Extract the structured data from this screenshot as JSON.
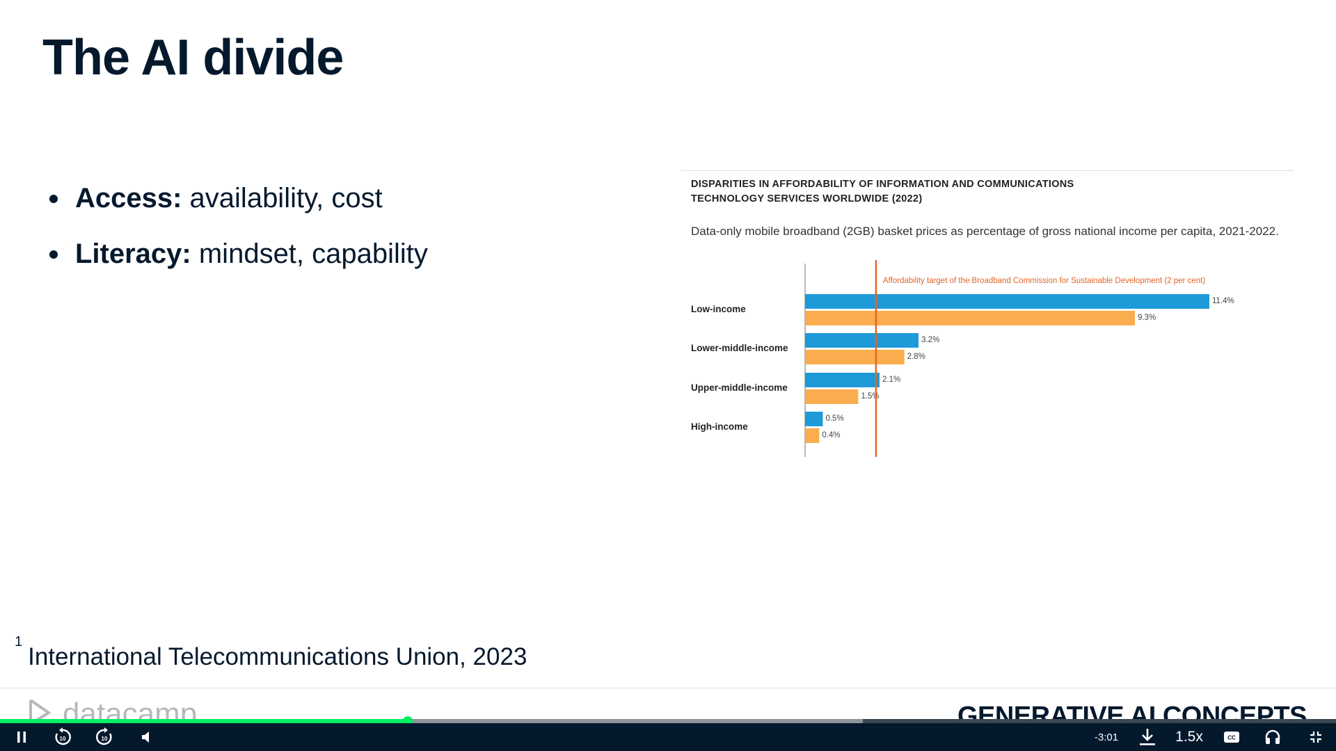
{
  "slide": {
    "title": "The AI divide",
    "bullets": [
      {
        "bold": "Access:",
        "text": " availability, cost"
      },
      {
        "bold": "Literacy:",
        "text": " mindset, capability"
      }
    ],
    "footnote_mark": "1",
    "footnote_text": "International Telecommunications Union, 2023"
  },
  "footer": {
    "logo_text": "datacamp",
    "course_title": "GENERATIVE AI CONCEPTS"
  },
  "chart_data": {
    "type": "bar",
    "title_line1": "DISPARITIES IN AFFORDABILITY OF INFORMATION AND COMMUNICATIONS",
    "title_line2": "TECHNOLOGY SERVICES WORLDWIDE (2022)",
    "subtitle": "Data-only mobile broadband (2GB) basket prices as percentage of gross national income per capita, 2021-2022.",
    "orientation": "horizontal",
    "categories": [
      "Low-income",
      "Lower-middle-income",
      "Upper-middle-income",
      "High-income"
    ],
    "series": [
      {
        "values": [
          11.4,
          3.2,
          2.1,
          0.5
        ],
        "color": "#1f9ad9"
      },
      {
        "values": [
          9.3,
          2.8,
          1.5,
          0.4
        ],
        "color": "#f9ad4e"
      }
    ],
    "value_labels": [
      [
        "11.4%",
        "3.2%",
        "2.1%",
        "0.5%"
      ],
      [
        "9.3%",
        "2.8%",
        "1.5%",
        "0.4%"
      ]
    ],
    "target": {
      "value": 2,
      "label": "Affordability target of the Broadband Commission for Sustainable Development  (2 per cent)",
      "color": "#e0652a"
    },
    "xlim": [
      0,
      12
    ]
  },
  "player": {
    "time_remaining": "-3:01",
    "speed": "1.5x",
    "progress_played": 0.305,
    "progress_buffered": 0.646,
    "icons": [
      "pause-icon",
      "rewind-10-icon",
      "forward-10-icon",
      "volume-icon",
      "download-icon",
      "captions-icon",
      "headphones-icon",
      "exit-fullscreen-icon"
    ]
  }
}
